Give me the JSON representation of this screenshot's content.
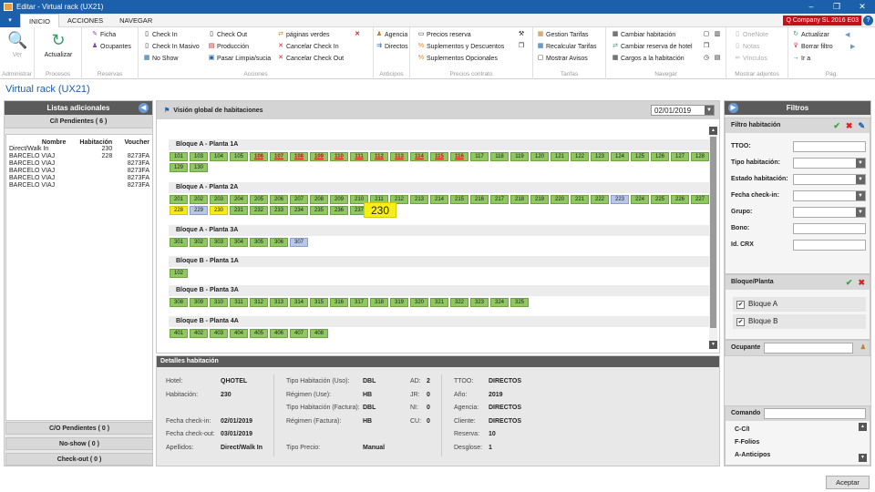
{
  "window": {
    "title": "Editar - Virtual rack (UX21)"
  },
  "menu": {
    "file": "▾",
    "tabs": [
      "INICIO",
      "ACCIONES",
      "NAVEGAR"
    ],
    "company": "Q Company SL 2016 E03",
    "help": "?"
  },
  "ribbon": {
    "administrar": {
      "ver": "Ver",
      "label": "Administrar"
    },
    "procesos": {
      "actualizar": "Actualizar",
      "label": "Procesos"
    },
    "reservas": {
      "items": [
        "Ficha",
        "Ocupantes"
      ],
      "label": "Reservas"
    },
    "acciones": {
      "col1": [
        "Check In",
        "Check In Masivo",
        "No Show"
      ],
      "col2": [
        "Check Out",
        "Producción",
        "Pasar Limpia/sucia"
      ],
      "col3": [
        "páginas verdes",
        "Cancelar Check In",
        "Cancelar Check Out"
      ],
      "label": "Acciones"
    },
    "anticipos": {
      "items": [
        "Agencia",
        "Directos"
      ],
      "label": "Anticipos"
    },
    "precios": {
      "items": [
        "Precios reserva",
        "Suplementos y Descuentos",
        "Suplementos Opcionales"
      ],
      "label": "Precios contrato"
    },
    "tarifas": {
      "items": [
        "Gestion Tarifas",
        "Recalcular Tarifas",
        "Mostrar Avisos"
      ],
      "label": "Tarifas"
    },
    "navegar": {
      "items": [
        "Cambiar habitación",
        "Cambiar reserva de hotel",
        "Cargos a la habitación"
      ],
      "label": "Navegar"
    },
    "adjuntos": {
      "items": [
        "OneNote",
        "Notas",
        "Vínculos"
      ],
      "label": "Mostrar adjuntos"
    },
    "pag": {
      "items": [
        "Actualizar",
        "Borrar filtro",
        "Ir a"
      ],
      "label": "Pág."
    }
  },
  "page_title": "Virtual rack (UX21)",
  "left": {
    "title": "Listas adicionales",
    "pendientes": "C/I Pendientes  ( 6 )",
    "columns": [
      "Nombre",
      "Habitación",
      "Voucher"
    ],
    "rows": [
      {
        "nombre": "Direct/Walk In",
        "hab": "230",
        "voucher": ""
      },
      {
        "nombre": "BARCELO VIAJ",
        "hab": "228",
        "voucher": "8273FA"
      },
      {
        "nombre": "BARCELO VIAJ",
        "hab": "",
        "voucher": "8273FA"
      },
      {
        "nombre": "BARCELO VIAJ",
        "hab": "",
        "voucher": "8273FA"
      },
      {
        "nombre": "BARCELO VIAJ",
        "hab": "",
        "voucher": "8273FA"
      },
      {
        "nombre": "BARCELO VIAJ",
        "hab": "",
        "voucher": "8273FA"
      }
    ],
    "co": "C/O Pendientes  ( 0 )",
    "noshow": "No-show  ( 0 )",
    "checkout": "Check-out  ( 0 )"
  },
  "center": {
    "title": "Visión global de habitaciones",
    "date": "02/01/2019",
    "tooltip": "230",
    "blocks": [
      {
        "title": "Bloque A  -  Planta 1A",
        "rooms": [
          {
            "n": "101"
          },
          {
            "n": "103"
          },
          {
            "n": "104"
          },
          {
            "n": "105"
          },
          {
            "n": "106",
            "s": "red"
          },
          {
            "n": "107",
            "s": "red"
          },
          {
            "n": "108",
            "s": "red"
          },
          {
            "n": "109",
            "s": "red"
          },
          {
            "n": "110",
            "s": "red"
          },
          {
            "n": "111",
            "s": "red"
          },
          {
            "n": "112",
            "s": "red"
          },
          {
            "n": "113",
            "s": "red"
          },
          {
            "n": "114",
            "s": "red"
          },
          {
            "n": "115",
            "s": "red"
          },
          {
            "n": "116",
            "s": "red"
          },
          {
            "n": "117"
          },
          {
            "n": "118"
          },
          {
            "n": "119"
          },
          {
            "n": "120"
          },
          {
            "n": "121"
          },
          {
            "n": "122"
          },
          {
            "n": "123"
          },
          {
            "n": "124"
          },
          {
            "n": "125"
          },
          {
            "n": "126"
          },
          {
            "n": "127"
          },
          {
            "n": "128"
          },
          {
            "n": "129"
          },
          {
            "n": "130"
          }
        ]
      },
      {
        "title": "Bloque A  -  Planta 2A",
        "rooms": [
          {
            "n": "201"
          },
          {
            "n": "202"
          },
          {
            "n": "203"
          },
          {
            "n": "204"
          },
          {
            "n": "205"
          },
          {
            "n": "206"
          },
          {
            "n": "207"
          },
          {
            "n": "208"
          },
          {
            "n": "209"
          },
          {
            "n": "210"
          },
          {
            "n": "211"
          },
          {
            "n": "212"
          },
          {
            "n": "213"
          },
          {
            "n": "214"
          },
          {
            "n": "215"
          },
          {
            "n": "216"
          },
          {
            "n": "217"
          },
          {
            "n": "218"
          },
          {
            "n": "219"
          },
          {
            "n": "220"
          },
          {
            "n": "221"
          },
          {
            "n": "222"
          },
          {
            "n": "223",
            "s": "blue"
          },
          {
            "n": "224"
          },
          {
            "n": "225"
          },
          {
            "n": "226"
          },
          {
            "n": "227"
          },
          {
            "n": "228",
            "s": "yellow"
          },
          {
            "n": "229",
            "s": "blue"
          },
          {
            "n": "230",
            "s": "yellow"
          },
          {
            "n": "231"
          },
          {
            "n": "232"
          },
          {
            "n": "233"
          },
          {
            "n": "234"
          },
          {
            "n": "235"
          },
          {
            "n": "236"
          },
          {
            "n": "237"
          }
        ]
      },
      {
        "title": "Bloque A  -  Planta 3A",
        "rooms": [
          {
            "n": "301"
          },
          {
            "n": "302"
          },
          {
            "n": "303"
          },
          {
            "n": "304"
          },
          {
            "n": "305"
          },
          {
            "n": "306"
          },
          {
            "n": "307",
            "s": "blue"
          }
        ]
      },
      {
        "title": "Bloque B  -  Planta 1A",
        "rooms": [
          {
            "n": "102"
          }
        ]
      },
      {
        "title": "Bloque B  -  Planta 3A",
        "rooms": [
          {
            "n": "308"
          },
          {
            "n": "309"
          },
          {
            "n": "310"
          },
          {
            "n": "311"
          },
          {
            "n": "312"
          },
          {
            "n": "313"
          },
          {
            "n": "314"
          },
          {
            "n": "315"
          },
          {
            "n": "316"
          },
          {
            "n": "317"
          },
          {
            "n": "318"
          },
          {
            "n": "319"
          },
          {
            "n": "320"
          },
          {
            "n": "321"
          },
          {
            "n": "322"
          },
          {
            "n": "323"
          },
          {
            "n": "324"
          },
          {
            "n": "325"
          }
        ]
      },
      {
        "title": "Bloque B  -  Planta 4A",
        "rooms": [
          {
            "n": "401"
          },
          {
            "n": "402"
          },
          {
            "n": "403"
          },
          {
            "n": "404"
          },
          {
            "n": "405"
          },
          {
            "n": "406"
          },
          {
            "n": "407"
          },
          {
            "n": "408"
          }
        ]
      }
    ]
  },
  "details": {
    "title": "Detalles habitación",
    "hotel_l": "Hotel:",
    "hotel_v": "QHOTEL",
    "hab_l": "Habitación:",
    "hab_v": "230",
    "fin_l": "Fecha check-in:",
    "fin_v": "02/01/2019",
    "fout_l": "Fecha check-out:",
    "fout_v": "03/01/2019",
    "ape_l": "Apellidos:",
    "ape_v": "Direct/Walk In",
    "tuso_l": "Tipo Habitación (Uso):",
    "tuso_v": "DBL",
    "ruso_l": "Régimen (Use):",
    "ruso_v": "HB",
    "tfac_l": "Tipo Habitación (Factura):",
    "tfac_v": "DBL",
    "rfac_l": "Régimen (Factura):",
    "rfac_v": "HB",
    "tprecio_l": "Tipo Precio:",
    "tprecio_v": "Manual",
    "ad_l": "AD:",
    "ad_v": "2",
    "jr_l": "JR:",
    "jr_v": "0",
    "ni_l": "NI:",
    "ni_v": "0",
    "cu_l": "CU:",
    "cu_v": "0",
    "ttoo_l": "TTOO:",
    "ttoo_v": "DIRECTOS",
    "ano_l": "Año:",
    "ano_v": "2019",
    "agencia_l": "Agencia:",
    "agencia_v": "DIRECTOS",
    "cliente_l": "Cliente:",
    "cliente_v": "DIRECTOS",
    "reserva_l": "Reserva:",
    "reserva_v": "10",
    "desglose_l": "Desglose:",
    "desglose_v": "1"
  },
  "filters": {
    "title": "Filtros",
    "hab": {
      "title": "Filtro habitación",
      "fields": [
        "TTOO:",
        "Tipo habitación:",
        "Estado habitación:",
        "Fecha check-in:",
        "Grupo:",
        "Bono:",
        "Id. CRX"
      ]
    },
    "bloque": {
      "title": "Bloque/Planta",
      "items": [
        "Bloque A",
        "Bloque B"
      ]
    },
    "ocupante": "Ocupante",
    "comando": {
      "title": "Comando",
      "items": [
        "C-C/I",
        "F-Folios",
        "A-Anticipos"
      ]
    }
  },
  "accept": "Aceptar"
}
